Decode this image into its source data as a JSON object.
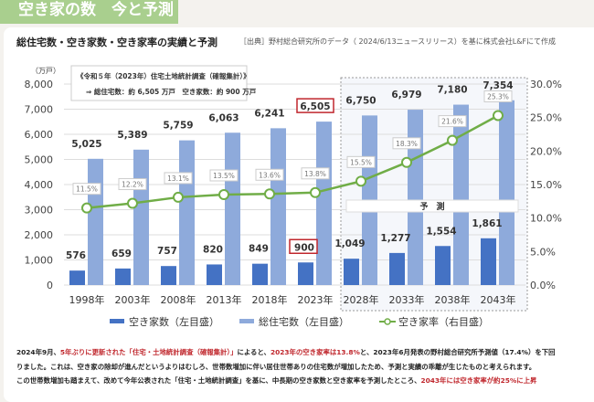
{
  "header": {
    "title": "空き家の数　今と予測"
  },
  "chart_title": "総住宅数・空き家数・空き家率の実績と予測",
  "source": "［出典］野村総合研究所のデータ（ 2024/6/13ニュースリリース）を基に株式会社L&Fにて作成",
  "annotation": {
    "line1": "《令和５年（2023年）住宅土地統計調査（確報集計）》",
    "line2": "⇒ 総住宅数：約 6,505 万戸　空き家数：約 900 万戸"
  },
  "forecast_label": "予　測",
  "colors": {
    "vacant": "#4472c4",
    "total": "#8eaadb",
    "rate": "#70ad47",
    "highlight": "#c0272d"
  },
  "chart_data": {
    "type": "bar+line",
    "left_unit": "（万戸）",
    "categories": [
      "1998年",
      "2003年",
      "2008年",
      "2013年",
      "2018年",
      "2023年",
      "2028年",
      "2033年",
      "2038年",
      "2043年"
    ],
    "left_ticks": [
      "0",
      "1,000",
      "2,000",
      "3,000",
      "4,000",
      "5,000",
      "6,000",
      "7,000",
      "8,000"
    ],
    "right_ticks": [
      "0.0%",
      "5.0%",
      "10.0%",
      "15.0%",
      "20.0%",
      "25.0%",
      "30.0%"
    ],
    "ylim_left": [
      0,
      8000
    ],
    "ylim_right": [
      0,
      30
    ],
    "series": [
      {
        "name": "空き家数（左目盛）",
        "type": "bar",
        "values": [
          576,
          659,
          757,
          820,
          849,
          900,
          1049,
          1277,
          1554,
          1861
        ],
        "labels": [
          "576",
          "659",
          "757",
          "820",
          "849",
          "900",
          "1,049",
          "1,277",
          "1,554",
          "1,861"
        ]
      },
      {
        "name": "総住宅数（左目盛）",
        "type": "bar",
        "values": [
          5025,
          5389,
          5759,
          6063,
          6241,
          6505,
          6750,
          6979,
          7180,
          7354
        ],
        "labels": [
          "5,025",
          "5,389",
          "5,759",
          "6,063",
          "6,241",
          "6,505",
          "6,750",
          "6,979",
          "7,180",
          "7,354"
        ]
      },
      {
        "name": "空き家率（右目盛）",
        "type": "line",
        "values": [
          11.5,
          12.2,
          13.1,
          13.5,
          13.6,
          13.8,
          15.5,
          18.3,
          21.6,
          25.3
        ],
        "labels": [
          "11.5%",
          "12.2%",
          "13.1%",
          "13.5%",
          "13.6%",
          "13.8%",
          "15.5%",
          "18.3%",
          "21.6%",
          "25.3%"
        ]
      }
    ],
    "forecast_from": "2028年",
    "grid": true,
    "legend": "bottom"
  },
  "note": [
    [
      {
        "t": "2024年9月、"
      },
      {
        "t": "5年ぶりに更新された「住宅・土地統計調査（確報集計）」",
        "r": 1
      },
      {
        "t": "によると、"
      },
      {
        "t": "2023年の空き家率は13.8%",
        "r": 1
      },
      {
        "t": "と、2023年6月発表の野村総合研究所予測値（17.4%）を下回"
      }
    ],
    [
      {
        "t": "りました。これは、空き家の除却が進んだというよりはむしろ、世帯数増加に伴い居住世帯ありの住宅数が増加したため、予測と実績の乖離が生じたものと考えられます。"
      }
    ],
    [
      {
        "t": "この世帯数増加も踏まえて、改めて今年公表された「住宅・土地統計調査」を基に、中長期の空き家数と空き家率を予測したところ、"
      },
      {
        "t": "2043年には空き家率が約25%に上昇",
        "r": 1
      }
    ]
  ]
}
